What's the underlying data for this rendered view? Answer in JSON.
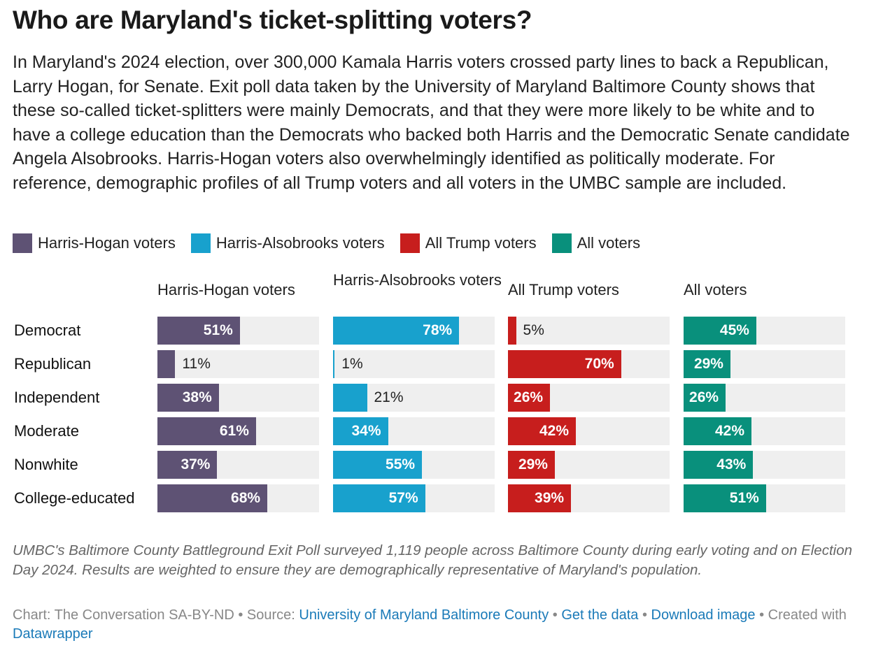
{
  "title": "Who are Maryland's ticket-splitting voters?",
  "intro": "In Maryland's 2024 election, over 300,000 Kamala Harris voters crossed party lines to back a Republican, Larry Hogan, for Senate. Exit poll data taken by the University of Maryland Baltimore County shows that these so-called ticket-splitters were mainly Democrats, and that they were more likely to be white and to have a college education than the Democrats who backed both Harris and the Democratic Senate candidate Angela Alsobrooks. Harris-Hogan voters also overwhelmingly identified as politically moderate. For reference, demographic profiles of all Trump voters and all voters in the UMBC sample are included.",
  "note": "UMBC's Baltimore County Battleground Exit Poll surveyed 1,119 people across Baltimore County during early voting and on Election Day 2024. Results are weighted to ensure they are demographically representative of Maryland's population.",
  "credit": {
    "chart_by": "Chart: The Conversation SA-BY-ND",
    "sep1": " • Source: ",
    "source_link": "University of Maryland Baltimore County",
    "sep2": " • ",
    "get_data_link": "Get the data",
    "sep3": " • ",
    "download_link": "Download image",
    "sep4": " • ",
    "created_with": "Created with ",
    "datawrapper_link": "Datawrapper"
  },
  "colors": {
    "Harris-Hogan voters": "#5e5274",
    "Harris-Alsobrooks voters": "#18a1cd",
    "All Trump voters": "#c71e1d",
    "All voters": "#09907c",
    "track": "#efefef"
  },
  "chart_data": {
    "type": "bar",
    "orientation": "horizontal",
    "layout": "small-multiples",
    "value_suffix": "%",
    "xlim": [
      0,
      100
    ],
    "categories": [
      "Democrat",
      "Republican",
      "Independent",
      "Moderate",
      "Nonwhite",
      "College-educated"
    ],
    "series": [
      {
        "name": "Harris-Hogan voters",
        "values": [
          51,
          11,
          38,
          61,
          37,
          68
        ]
      },
      {
        "name": "Harris-Alsobrooks voters",
        "values": [
          78,
          1,
          21,
          34,
          55,
          57
        ]
      },
      {
        "name": "All Trump voters",
        "values": [
          5,
          70,
          26,
          42,
          29,
          39
        ]
      },
      {
        "name": "All voters",
        "values": [
          45,
          29,
          26,
          42,
          43,
          51
        ]
      }
    ],
    "legend": [
      "Harris-Hogan voters",
      "Harris-Alsobrooks voters",
      "All Trump voters",
      "All voters"
    ]
  }
}
